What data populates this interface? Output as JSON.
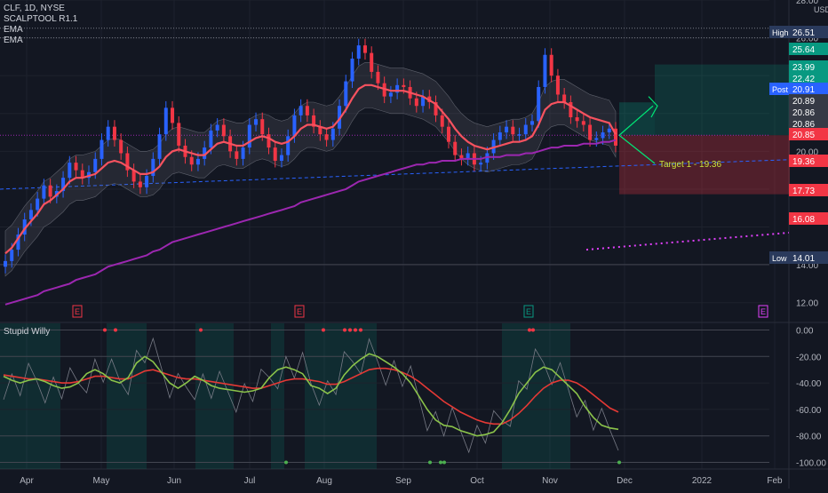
{
  "legend": {
    "symbol": "CLF, 1D, NYSE",
    "indicator1": "SCALPTOOL R1.1",
    "indicator2": "EMA",
    "indicator3": "EMA"
  },
  "lower_panel_title": "Stupid Willy",
  "currency": "USD",
  "price_axis_ticks": [
    "28.00",
    "26.00",
    "24.00",
    "22.00",
    "20.00",
    "18.00",
    "14.00",
    "12.00"
  ],
  "price_badges": [
    {
      "label": "High",
      "value": "26.51",
      "color": "#2a3a5c"
    },
    {
      "label": "",
      "value": "25.64",
      "color": "#089981"
    },
    {
      "label": "",
      "value": "23.99",
      "color": "#089981"
    },
    {
      "label": "",
      "value": "22.42",
      "color": "#089981"
    },
    {
      "label": "Post",
      "value": "20.91",
      "color": "#2962ff"
    },
    {
      "label": "",
      "value": "20.89",
      "color": "#363a45"
    },
    {
      "label": "",
      "value": "20.86",
      "color": "#363a45"
    },
    {
      "label": "",
      "value": "20.86",
      "color": "#363a45"
    },
    {
      "label": "",
      "value": "20.85",
      "color": "#f23645"
    },
    {
      "label": "",
      "value": "19.36",
      "color": "#f23645"
    },
    {
      "label": "",
      "value": "17.73",
      "color": "#f23645"
    },
    {
      "label": "",
      "value": "16.08",
      "color": "#f23645"
    },
    {
      "label": "Low",
      "value": "14.01",
      "color": "#2a3a5c"
    }
  ],
  "target_label": "Target 1 - 19.36",
  "earnings_markers": [
    "E",
    "E",
    "E",
    "E"
  ],
  "lower_axis_ticks": [
    "0.00",
    "-20.00",
    "-40.00",
    "-60.00",
    "-80.00",
    "-100.00"
  ],
  "time_axis_ticks": [
    "Apr",
    "May",
    "Jun",
    "Jul",
    "Aug",
    "Sep",
    "Oct",
    "Nov",
    "Dec",
    "2022",
    "Feb"
  ],
  "colors": {
    "up": "#2962ff",
    "down": "#f23645",
    "neutral": "#787b86",
    "ema_fast": "#f7525f",
    "ema_slow": "#9c27b0",
    "osc_fast": "#8bc34a",
    "osc_slow": "#e53935"
  },
  "chart_data": {
    "type": "candlestick",
    "title": "CLF, 1D, NYSE",
    "x_range": [
      "2021-03-24",
      "2022-02-10"
    ],
    "ylim": [
      11.0,
      28.0
    ],
    "log_scale": false,
    "grid": true,
    "months": [
      "Apr",
      "May",
      "Jun",
      "Jul",
      "Aug",
      "Sep",
      "Oct",
      "Nov",
      "Dec",
      "2022",
      "Feb"
    ],
    "close_series": [
      14.2,
      14.8,
      15.6,
      16.4,
      16.9,
      17.5,
      18.2,
      17.6,
      17.9,
      18.6,
      19.4,
      19.0,
      18.6,
      18.9,
      19.6,
      20.6,
      21.3,
      20.6,
      19.9,
      19.0,
      18.4,
      18.1,
      18.7,
      19.6,
      20.9,
      22.3,
      21.5,
      20.3,
      19.7,
      19.3,
      19.6,
      20.2,
      21.1,
      21.4,
      20.8,
      20.0,
      19.6,
      20.2,
      21.4,
      21.7,
      20.9,
      20.2,
      19.5,
      19.8,
      20.8,
      21.9,
      22.4,
      21.9,
      21.3,
      20.9,
      20.6,
      21.2,
      22.4,
      23.7,
      24.9,
      25.6,
      25.2,
      24.2,
      23.6,
      22.9,
      23.1,
      23.5,
      23.4,
      22.8,
      22.4,
      22.9,
      22.6,
      21.9,
      21.3,
      20.5,
      19.8,
      19.6,
      19.9,
      19.3,
      19.4,
      19.9,
      20.6,
      21.0,
      21.3,
      20.9,
      20.9,
      21.4,
      21.6,
      23.4,
      25.1,
      24.0,
      23.0,
      22.6,
      21.8,
      21.6,
      21.4,
      20.6,
      20.7,
      21.0,
      21.2,
      20.3
    ],
    "ema_fast": [
      14.6,
      14.9,
      15.4,
      15.9,
      16.3,
      16.7,
      17.2,
      17.4,
      17.7,
      18.0,
      18.4,
      18.6,
      18.6,
      18.7,
      18.8,
      19.1,
      19.4,
      19.5,
      19.4,
      19.2,
      19.0,
      18.8,
      18.8,
      18.9,
      19.2,
      19.7,
      20.0,
      20.1,
      20.0,
      19.9,
      19.8,
      19.8,
      20.1,
      20.4,
      20.5,
      20.4,
      20.3,
      20.3,
      20.5,
      20.7,
      20.8,
      20.7,
      20.5,
      20.4,
      20.5,
      20.8,
      21.2,
      21.4,
      21.4,
      21.3,
      21.2,
      21.3,
      21.7,
      22.2,
      22.8,
      23.3,
      23.5,
      23.5,
      23.4,
      23.3,
      23.2,
      23.2,
      23.2,
      23.1,
      23.0,
      22.9,
      22.7,
      22.5,
      22.1,
      21.7,
      21.2,
      20.8,
      20.5,
      20.3,
      20.2,
      20.1,
      20.2,
      20.3,
      20.4,
      20.5,
      20.5,
      20.6,
      20.8,
      21.4,
      22.2,
      22.5,
      22.6,
      22.6,
      22.4,
      22.2,
      22.0,
      21.8,
      21.7,
      21.6,
      21.5,
      20.9
    ],
    "ema_slow": [
      11.9,
      12.0,
      12.1,
      12.2,
      12.3,
      12.4,
      12.6,
      12.7,
      12.8,
      12.9,
      13.0,
      13.2,
      13.3,
      13.4,
      13.5,
      13.7,
      13.9,
      14.0,
      14.1,
      14.2,
      14.3,
      14.4,
      14.5,
      14.7,
      14.8,
      15.0,
      15.2,
      15.3,
      15.4,
      15.5,
      15.6,
      15.7,
      15.8,
      15.9,
      16.0,
      16.1,
      16.2,
      16.3,
      16.4,
      16.5,
      16.6,
      16.7,
      16.8,
      16.9,
      17.0,
      17.1,
      17.3,
      17.4,
      17.5,
      17.6,
      17.7,
      17.8,
      17.9,
      18.0,
      18.2,
      18.4,
      18.5,
      18.6,
      18.7,
      18.8,
      18.9,
      19.0,
      19.1,
      19.2,
      19.3,
      19.3,
      19.4,
      19.4,
      19.5,
      19.5,
      19.5,
      19.6,
      19.6,
      19.6,
      19.6,
      19.7,
      19.7,
      19.7,
      19.8,
      19.8,
      19.8,
      19.9,
      19.9,
      20.0,
      20.1,
      20.2,
      20.2,
      20.3,
      20.3,
      20.3,
      20.4,
      20.4,
      20.4,
      20.5,
      20.5,
      20.6
    ],
    "annotations": {
      "trade_entry": 20.85,
      "trade_target_up": 23.99,
      "trade_stop_zone_bottom": 17.73,
      "target_1": 19.36,
      "trend_line_low_start": 18.0,
      "trend_line_low_end": 19.36,
      "high": 26.51,
      "low": 14.01
    },
    "oscillator": {
      "name": "Stupid Willy",
      "ylim": [
        -105,
        5
      ],
      "fast": [
        -35,
        -38,
        -40,
        -38,
        -37,
        -39,
        -42,
        -44,
        -43,
        -40,
        -33,
        -30,
        -33,
        -38,
        -40,
        -36,
        -25,
        -20,
        -24,
        -32,
        -40,
        -44,
        -40,
        -35,
        -38,
        -42,
        -44,
        -45,
        -46,
        -47,
        -46,
        -44,
        -36,
        -30,
        -28,
        -30,
        -33,
        -42,
        -44,
        -48,
        -44,
        -34,
        -27,
        -22,
        -18,
        -20,
        -24,
        -28,
        -33,
        -40,
        -50,
        -60,
        -68,
        -72,
        -73,
        -76,
        -78,
        -80,
        -79,
        -77,
        -70,
        -60,
        -48,
        -40,
        -32,
        -28,
        -30,
        -36,
        -42,
        -48,
        -58,
        -66,
        -72,
        -74,
        -75
      ],
      "slow": [
        -34,
        -35,
        -36,
        -37,
        -37,
        -38,
        -39,
        -40,
        -40,
        -39,
        -37,
        -35,
        -35,
        -36,
        -37,
        -37,
        -34,
        -31,
        -30,
        -32,
        -34,
        -36,
        -37,
        -37,
        -38,
        -39,
        -40,
        -41,
        -42,
        -43,
        -44,
        -44,
        -42,
        -40,
        -38,
        -37,
        -37,
        -38,
        -39,
        -41,
        -41,
        -39,
        -36,
        -33,
        -30,
        -29,
        -29,
        -30,
        -32,
        -35,
        -39,
        -44,
        -49,
        -54,
        -58,
        -62,
        -65,
        -68,
        -70,
        -71,
        -71,
        -68,
        -63,
        -57,
        -50,
        -44,
        -40,
        -38,
        -38,
        -40,
        -44,
        -49,
        -54,
        -59,
        -62
      ]
    }
  }
}
